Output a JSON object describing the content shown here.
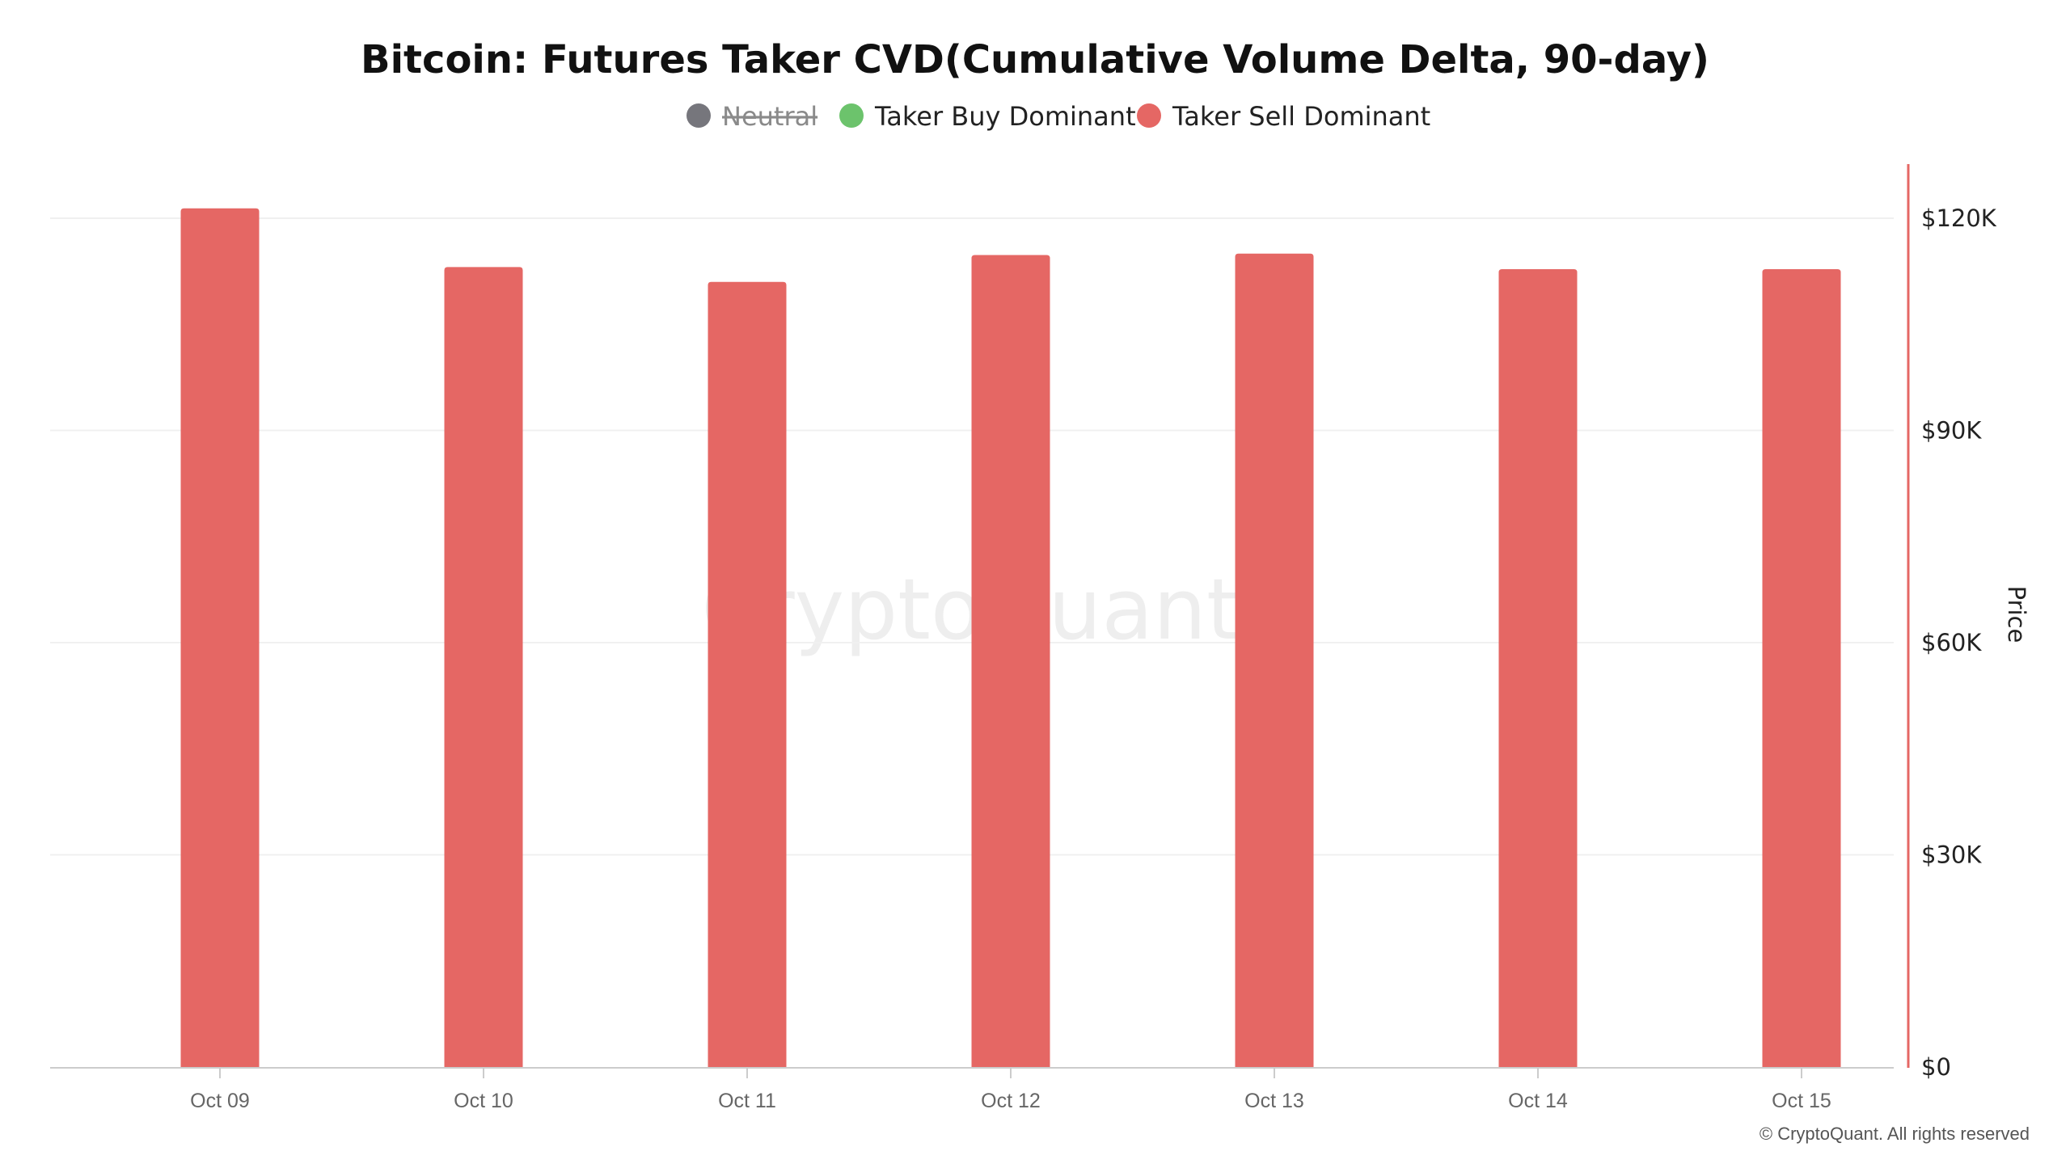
{
  "watermark": "CryptoQuant",
  "copyright": "© CryptoQuant. All rights reserved",
  "colors": {
    "neutral": "#76767c",
    "buy": "#6cc36c",
    "sell": "#e56764",
    "axis_right": "#e56764",
    "grid": "#f0f0f0",
    "baseline": "#cccccc"
  },
  "legend": [
    {
      "label": "Neutral",
      "color": "#76767c",
      "disabled": true
    },
    {
      "label": "Taker Buy Dominant",
      "color": "#6cc36c",
      "disabled": false
    },
    {
      "label": "Taker Sell Dominant",
      "color": "#e56764",
      "disabled": false
    }
  ],
  "chart_data": {
    "type": "bar",
    "title": "Bitcoin: Futures Taker CVD(Cumulative Volume Delta, 90-day)",
    "categories": [
      "Oct 09",
      "Oct 10",
      "Oct 11",
      "Oct 12",
      "Oct 13",
      "Oct 14",
      "Oct 15"
    ],
    "series": [
      {
        "name": "Taker Sell Dominant",
        "color": "#e56764",
        "values": [
          121400,
          113100,
          111000,
          114800,
          115000,
          112800,
          112800
        ]
      }
    ],
    "xlabel": "",
    "ylabel": "Price",
    "y_axis_position": "right",
    "ylim": [
      0,
      128000
    ],
    "yticks": [
      0,
      30000,
      60000,
      90000,
      120000
    ],
    "ytick_labels": [
      "$0",
      "$30K",
      "$60K",
      "$90K",
      "$120K"
    ],
    "grid": true,
    "legend_position": "top-center"
  }
}
